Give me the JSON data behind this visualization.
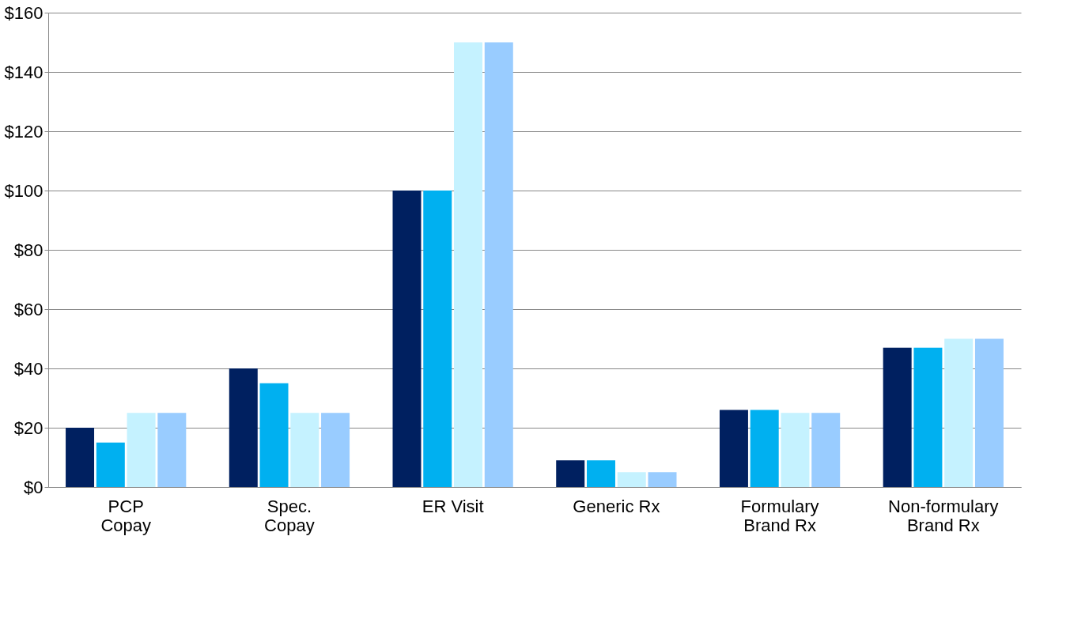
{
  "chart_data": {
    "type": "bar",
    "categories": [
      "PCP\nCopay",
      "Spec.\nCopay",
      "ER Visit",
      "Generic Rx",
      "Formulary\nBrand Rx",
      "Non-formulary\nBrand Rx"
    ],
    "series": [
      {
        "color": "#002060",
        "values": [
          20,
          40,
          100,
          9,
          26,
          47
        ]
      },
      {
        "color": "#00b0f0",
        "values": [
          15,
          35,
          100,
          9,
          26,
          47
        ]
      },
      {
        "color": "#c5f2ff",
        "values": [
          25,
          25,
          150,
          5,
          25,
          50
        ]
      },
      {
        "color": "#99ccff",
        "values": [
          25,
          25,
          150,
          5,
          25,
          50
        ]
      }
    ],
    "ylim": [
      0,
      160
    ],
    "yticks": [
      {
        "value": 0,
        "label": "$0"
      },
      {
        "value": 20,
        "label": "$20"
      },
      {
        "value": 40,
        "label": "$40"
      },
      {
        "value": 60,
        "label": "$60"
      },
      {
        "value": 80,
        "label": "$80"
      },
      {
        "value": 100,
        "label": "$100"
      },
      {
        "value": 120,
        "label": "$120"
      },
      {
        "value": 140,
        "label": "$140"
      },
      {
        "value": 160,
        "label": "$160"
      }
    ],
    "grid": "y",
    "legend": false
  }
}
